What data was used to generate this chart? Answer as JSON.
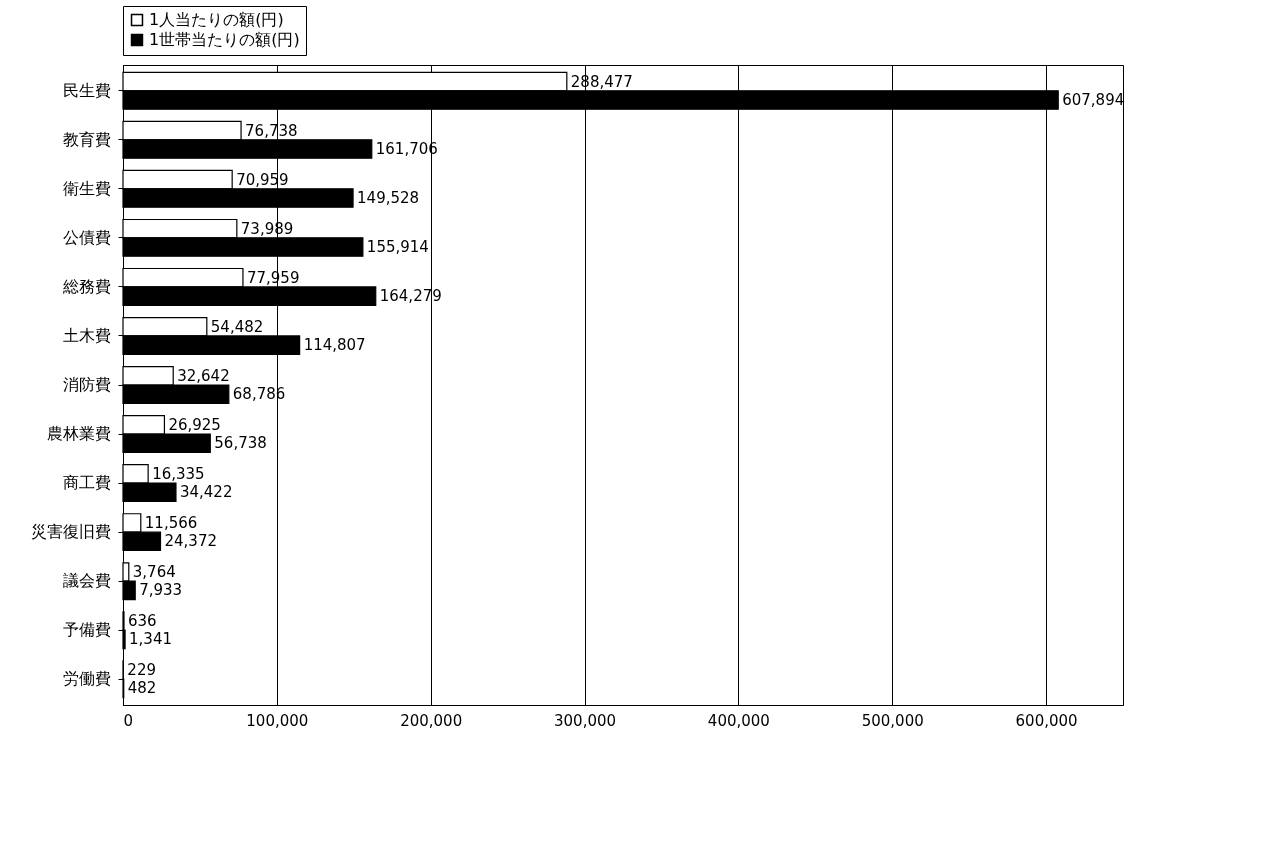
{
  "chart_data": {
    "type": "bar",
    "orientation": "horizontal",
    "categories": [
      "民生費",
      "教育費",
      "衛生費",
      "公債費",
      "総務費",
      "土木費",
      "消防費",
      "農林業費",
      "商工費",
      "災害復旧費",
      "議会費",
      "予備費",
      "労働費"
    ],
    "series": [
      {
        "name": "1人当たりの額(円)",
        "color": "#ffffff",
        "values": [
          288477,
          76738,
          70959,
          73989,
          77959,
          54482,
          32642,
          26925,
          16335,
          11566,
          3764,
          636,
          229
        ],
        "value_labels": [
          "288,477",
          "76,738",
          "70,959",
          "73,989",
          "77,959",
          "54,482",
          "32,642",
          "26,925",
          "16,335",
          "11,566",
          "3,764",
          "636",
          "229"
        ]
      },
      {
        "name": "1世帯当たりの額(円)",
        "color": "#000000",
        "values": [
          607894,
          161706,
          149528,
          155914,
          164279,
          114807,
          68786,
          56738,
          34422,
          24372,
          7933,
          1341,
          482
        ],
        "value_labels": [
          "607,894",
          "161,706",
          "149,528",
          "155,914",
          "164,279",
          "114,807",
          "68,786",
          "56,738",
          "34,422",
          "24,372",
          "7,933",
          "1,341",
          "482"
        ]
      }
    ],
    "xlim": [
      0,
      650000
    ],
    "xticks": [
      0,
      {
        "value": 100000,
        "label": "100,000"
      },
      {
        "value": 200000,
        "label": "200,000"
      },
      {
        "value": 300000,
        "label": "300,000"
      },
      {
        "value": 400000,
        "label": "400,000"
      },
      {
        "value": 500000,
        "label": "500,000"
      },
      {
        "value": 600000,
        "label": "600,000"
      }
    ],
    "grid": "x",
    "legend": "top"
  }
}
